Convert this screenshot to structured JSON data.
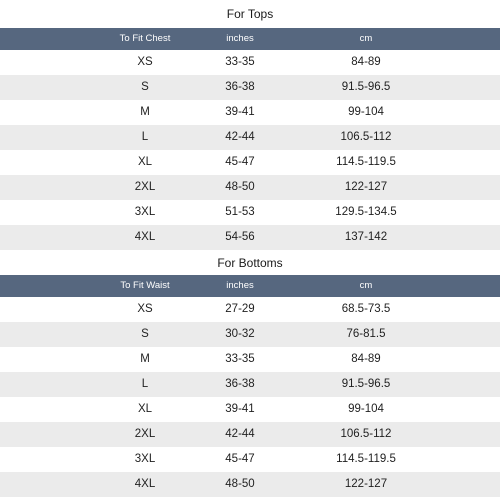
{
  "tops": {
    "title": "For Tops",
    "headers": [
      "To Fit Chest",
      "inches",
      "cm"
    ],
    "rows": [
      [
        "XS",
        "33-35",
        "84-89"
      ],
      [
        "S",
        "36-38",
        "91.5-96.5"
      ],
      [
        "M",
        "39-41",
        "99-104"
      ],
      [
        "L",
        "42-44",
        "106.5-112"
      ],
      [
        "XL",
        "45-47",
        "114.5-119.5"
      ],
      [
        "2XL",
        "48-50",
        "122-127"
      ],
      [
        "3XL",
        "51-53",
        "129.5-134.5"
      ],
      [
        "4XL",
        "54-56",
        "137-142"
      ]
    ]
  },
  "bottoms": {
    "title": "For Bottoms",
    "headers": [
      "To Fit Waist",
      "inches",
      "cm"
    ],
    "rows": [
      [
        "XS",
        "27-29",
        "68.5-73.5"
      ],
      [
        "S",
        "30-32",
        "76-81.5"
      ],
      [
        "M",
        "33-35",
        "84-89"
      ],
      [
        "L",
        "36-38",
        "91.5-96.5"
      ],
      [
        "XL",
        "39-41",
        "99-104"
      ],
      [
        "2XL",
        "42-44",
        "106.5-112"
      ],
      [
        "3XL",
        "45-47",
        "114.5-119.5"
      ],
      [
        "4XL",
        "48-50",
        "122-127"
      ]
    ]
  },
  "colors": {
    "header_bg": "#56677f",
    "alt_row_bg": "#ebebeb"
  }
}
